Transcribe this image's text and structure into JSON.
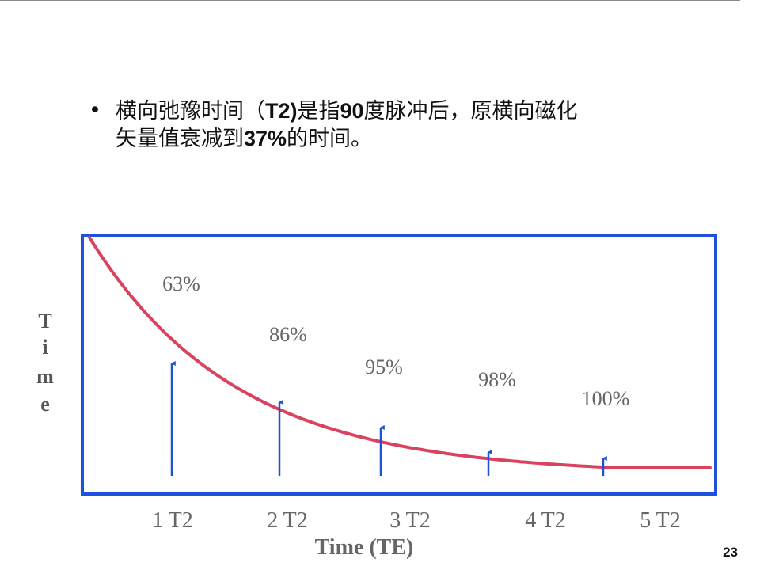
{
  "text": {
    "bullet": "•",
    "line1_a": "横向弛豫时间（",
    "line1_b": "T2)",
    "line1_c": "是指",
    "line1_d": "90",
    "line1_e": "度脉冲后，原横向磁化",
    "line2_a": "矢量值衰减到",
    "line2_b": "37%",
    "line2_c": "的时间。"
  },
  "chart_data": {
    "type": "line",
    "ylabel": "Time",
    "xlabel": "Time (TE)",
    "x_ticks": [
      "1 T2",
      "2 T2",
      "3 T2",
      "4 T2",
      "5 T2"
    ],
    "annotations": [
      "63%",
      "86%",
      "95%",
      "98%",
      "100%"
    ],
    "curve": "exponential decay",
    "colors": {
      "curve": "#d9435f",
      "arrows": "#2050d8",
      "frame": "#2050e0",
      "labels": "#666666"
    }
  },
  "page_number": "23"
}
